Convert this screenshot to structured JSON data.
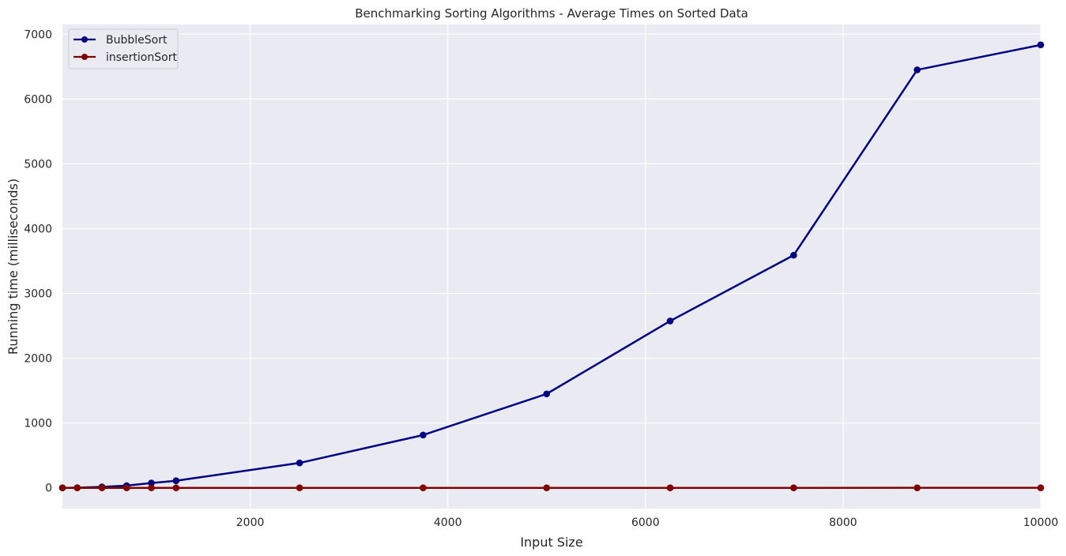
{
  "chart_data": {
    "type": "line",
    "title": "Benchmarking Sorting Algorithms - Average Times on Sorted Data",
    "xlabel": "Input Size",
    "ylabel": "Running time (milliseconds)",
    "xlim": [
      100,
      10000
    ],
    "ylim": [
      -320,
      7150
    ],
    "xticks": [
      2000,
      4000,
      6000,
      8000,
      10000
    ],
    "yticks": [
      0,
      1000,
      2000,
      3000,
      4000,
      5000,
      6000,
      7000
    ],
    "grid": true,
    "legend_position": "top-left",
    "x": [
      100,
      250,
      500,
      750,
      1000,
      1250,
      2500,
      3750,
      5000,
      6250,
      7500,
      8750,
      10000
    ],
    "series": [
      {
        "name": "BubbleSort",
        "color": "#000080",
        "values": [
          0.5,
          3,
          15,
          35,
          75,
          110,
          385,
          815,
          1450,
          2575,
          3590,
          6450,
          6835
        ]
      },
      {
        "name": "insertionSort",
        "color": "#800000",
        "values": [
          0,
          0,
          0,
          0,
          0.1,
          0.1,
          0.2,
          0.3,
          0.4,
          0.5,
          0.6,
          0.7,
          0.8
        ]
      }
    ]
  }
}
